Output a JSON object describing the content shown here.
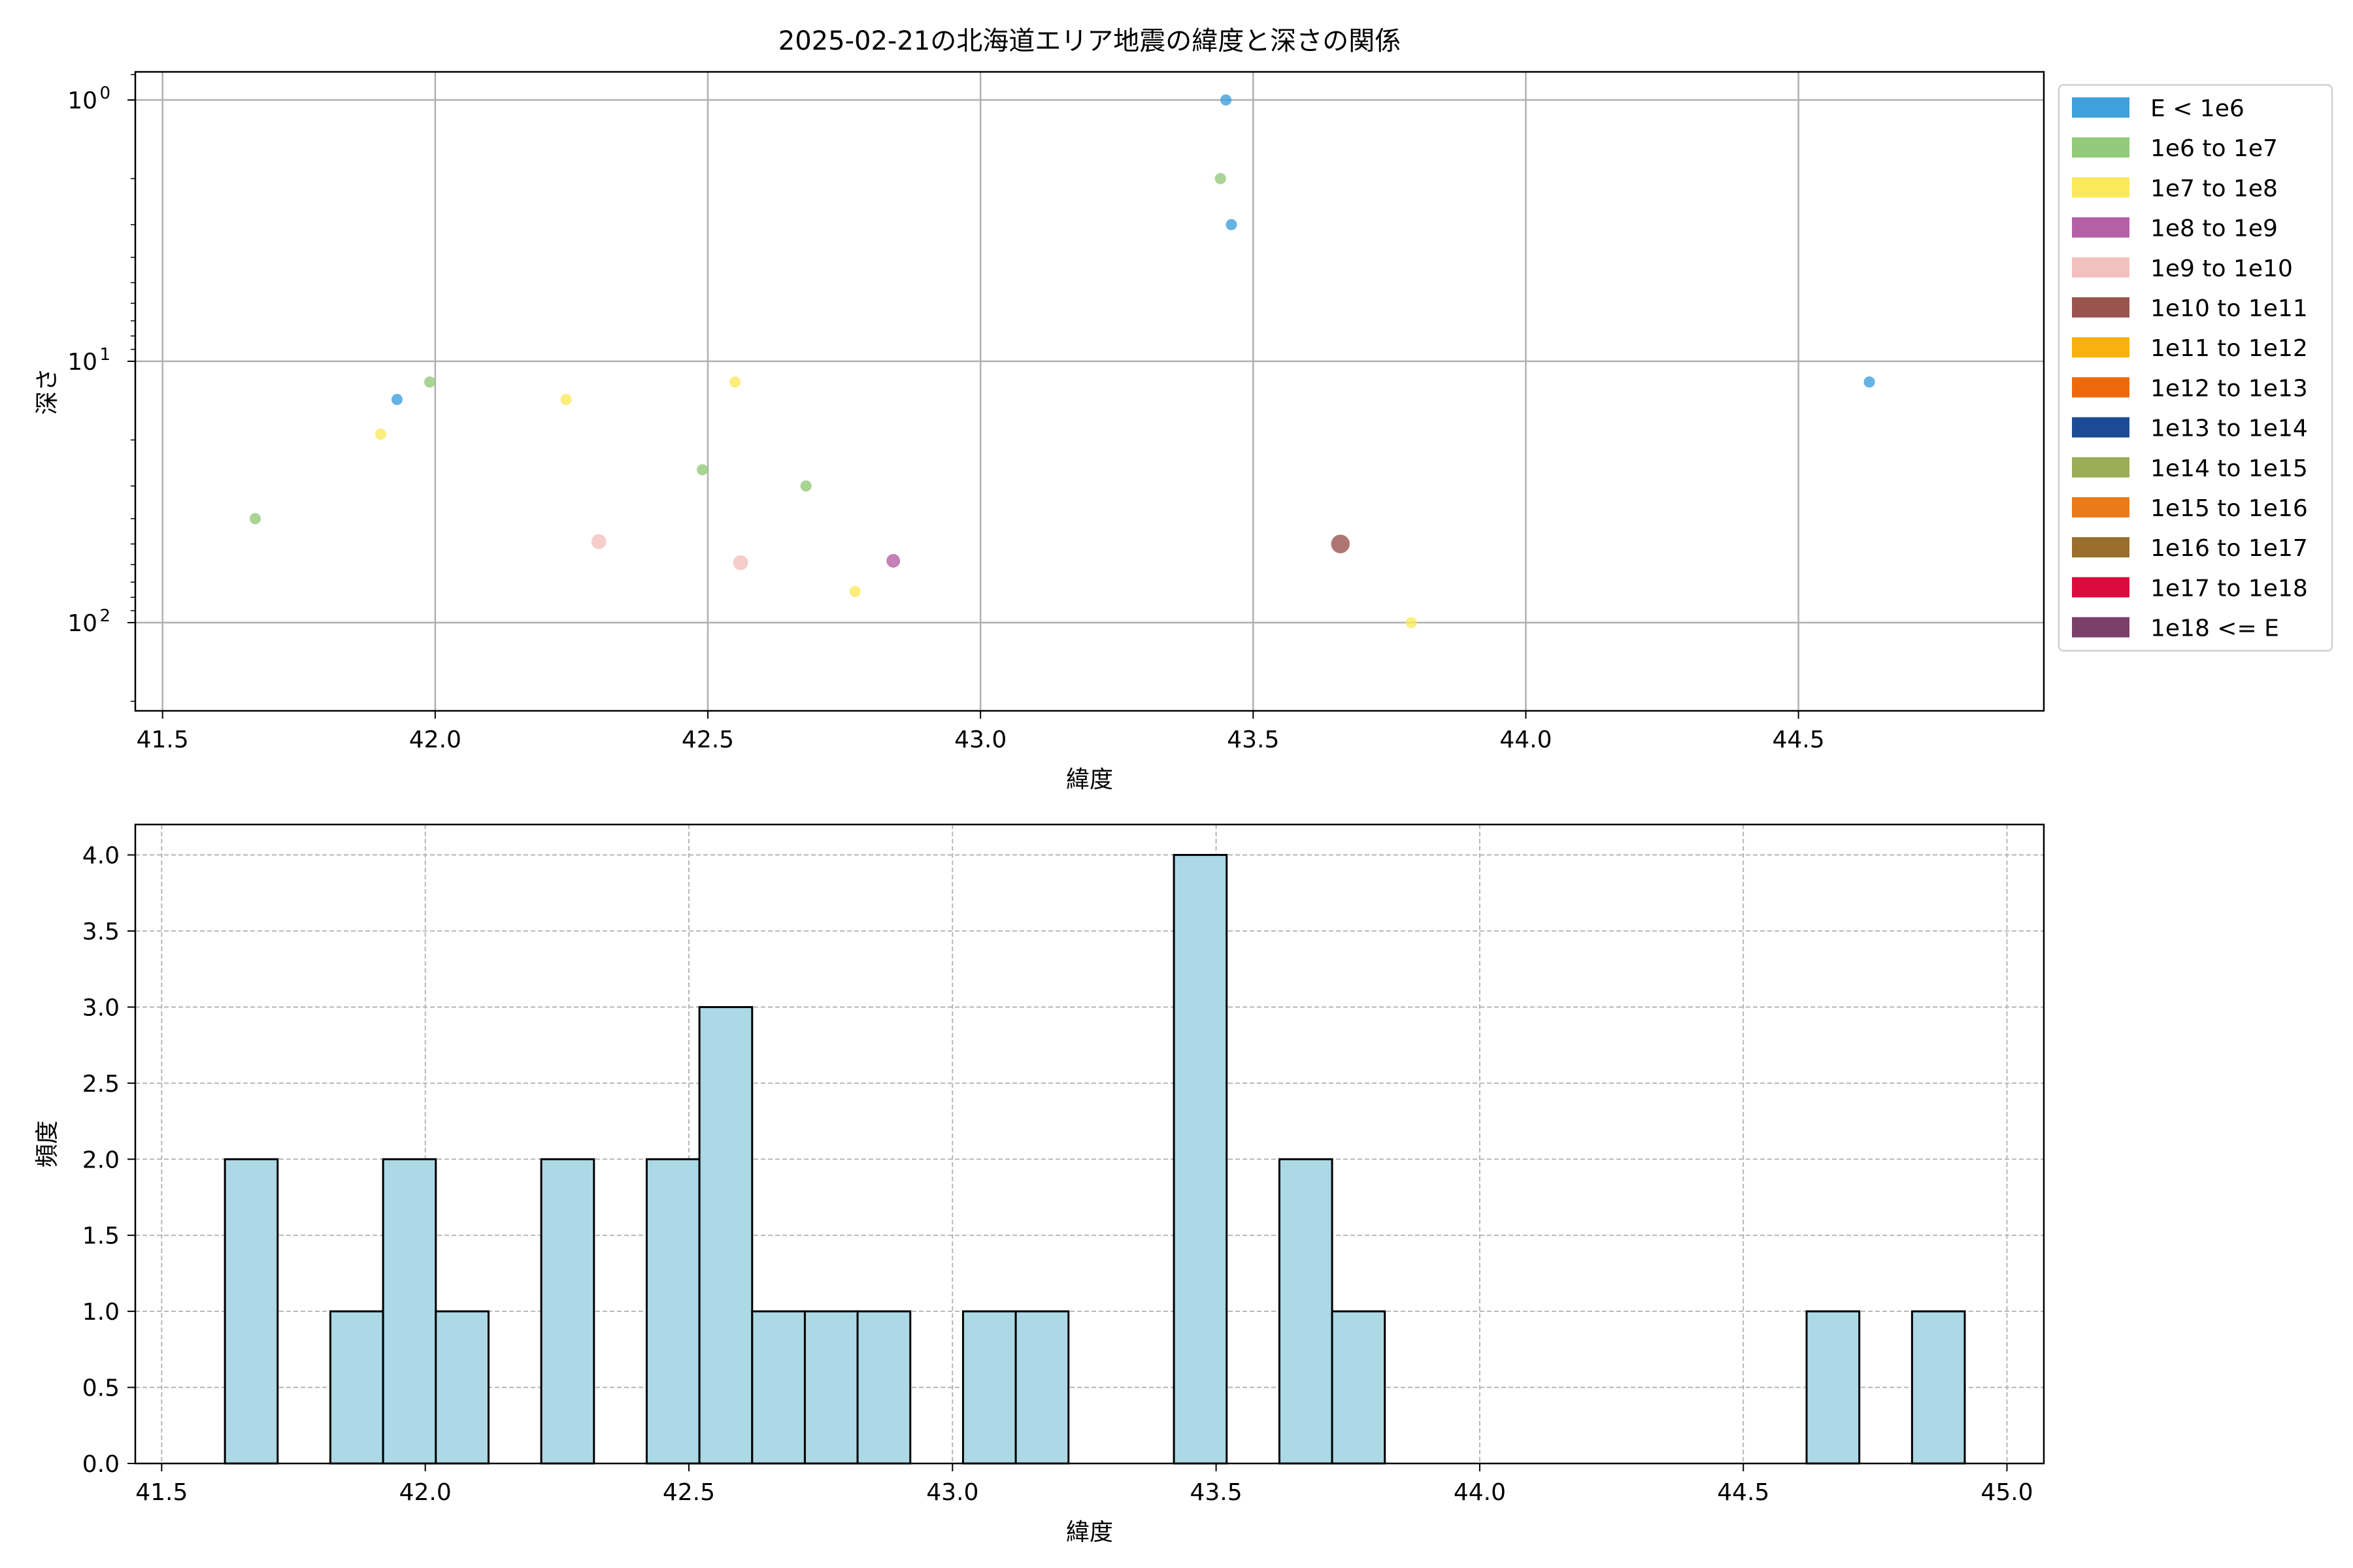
{
  "chart_data": [
    {
      "type": "scatter",
      "title": "2025-02-21の北海道エリア地震の緯度と深さの関係",
      "xlabel": "緯度",
      "ylabel": "深さ",
      "xlim": [
        41.45,
        44.95
      ],
      "y_scale": "log",
      "y_inverted": true,
      "grid": true,
      "x_ticks": [
        41.5,
        42.0,
        42.5,
        43.0,
        43.5,
        44.0,
        44.5
      ],
      "x_tick_labels": [
        "41.5",
        "42.0",
        "42.5",
        "43.0",
        "43.5",
        "44.0",
        "44.5"
      ],
      "y_ticks": [
        1,
        10,
        100
      ],
      "y_tick_labels": [
        {
          "base": "10",
          "exp": "0"
        },
        {
          "base": "10",
          "exp": "1"
        },
        {
          "base": "10",
          "exp": "2"
        }
      ],
      "legend_position": "outside upper right",
      "legend": [
        {
          "label": "E < 1e6",
          "color": "#3fa0dd"
        },
        {
          "label": "1e6 to 1e7",
          "color": "#93c97a"
        },
        {
          "label": "1e7 to 1e8",
          "color": "#fbe95c"
        },
        {
          "label": "1e8 to 1e9",
          "color": "#b560a6"
        },
        {
          "label": "1e9 to 1e10",
          "color": "#f3c1bd"
        },
        {
          "label": "1e10 to 1e11",
          "color": "#9a544e"
        },
        {
          "label": "1e11 to 1e12",
          "color": "#f8b10e"
        },
        {
          "label": "1e12 to 1e13",
          "color": "#ec6a0d"
        },
        {
          "label": "1e13 to 1e14",
          "color": "#1c4b96"
        },
        {
          "label": "1e14 to 1e15",
          "color": "#9bad55"
        },
        {
          "label": "1e15 to 1e16",
          "color": "#ea7b1c"
        },
        {
          "label": "1e16 to 1e17",
          "color": "#9a6e2d"
        },
        {
          "label": "1e17 to 1e18",
          "color": "#dc0a3f"
        },
        {
          "label": "1e18 <= E",
          "color": "#7b4069"
        }
      ],
      "points": [
        {
          "x": 43.45,
          "y": 1,
          "color": "#3fa0dd",
          "size": 4.5
        },
        {
          "x": 43.44,
          "y": 2,
          "color": "#93c97a",
          "size": 4.5
        },
        {
          "x": 43.46,
          "y": 3,
          "color": "#3fa0dd",
          "size": 4.5
        },
        {
          "x": 41.93,
          "y": 14,
          "color": "#3fa0dd",
          "size": 4.5
        },
        {
          "x": 41.99,
          "y": 12,
          "color": "#93c97a",
          "size": 4.5
        },
        {
          "x": 41.9,
          "y": 19,
          "color": "#fbe95c",
          "size": 4.5
        },
        {
          "x": 42.24,
          "y": 14,
          "color": "#fbe95c",
          "size": 4.5
        },
        {
          "x": 42.55,
          "y": 12,
          "color": "#fbe95c",
          "size": 4.5
        },
        {
          "x": 44.63,
          "y": 12,
          "color": "#3fa0dd",
          "size": 4.5
        },
        {
          "x": 41.67,
          "y": 40,
          "color": "#93c97a",
          "size": 4.5
        },
        {
          "x": 42.49,
          "y": 26,
          "color": "#93c97a",
          "size": 4.5
        },
        {
          "x": 42.68,
          "y": 30,
          "color": "#93c97a",
          "size": 4.5
        },
        {
          "x": 42.3,
          "y": 49,
          "color": "#f3c1bd",
          "size": 6
        },
        {
          "x": 42.56,
          "y": 59,
          "color": "#f3c1bd",
          "size": 6
        },
        {
          "x": 42.84,
          "y": 58,
          "color": "#b560a6",
          "size": 5.5
        },
        {
          "x": 42.77,
          "y": 76,
          "color": "#fbe95c",
          "size": 4.5
        },
        {
          "x": 43.66,
          "y": 50,
          "color": "#9a544e",
          "size": 7.5
        },
        {
          "x": 43.79,
          "y": 100,
          "color": "#fbe95c",
          "size": 4.5
        }
      ]
    },
    {
      "type": "bar",
      "subtype": "histogram",
      "xlabel": "緯度",
      "ylabel": "頻度",
      "xlim": [
        41.45,
        45.07
      ],
      "ylim": [
        0,
        4.2
      ],
      "grid": true,
      "bar_color": "#add8e6",
      "x_ticks": [
        41.5,
        42.0,
        42.5,
        43.0,
        43.5,
        44.0,
        44.5,
        45.0
      ],
      "x_tick_labels": [
        "41.5",
        "42.0",
        "42.5",
        "43.0",
        "43.5",
        "44.0",
        "44.5",
        "45.0"
      ],
      "y_ticks": [
        0,
        0.5,
        1.0,
        1.5,
        2.0,
        2.5,
        3.0,
        3.5,
        4.0
      ],
      "y_tick_labels": [
        "0.0",
        "0.5",
        "1.0",
        "1.5",
        "2.0",
        "2.5",
        "3.0",
        "3.5",
        "4.0"
      ],
      "bins": [
        {
          "x0": 41.62,
          "x1": 41.72,
          "count": 2
        },
        {
          "x0": 41.82,
          "x1": 41.92,
          "count": 1
        },
        {
          "x0": 41.92,
          "x1": 42.02,
          "count": 2
        },
        {
          "x0": 42.02,
          "x1": 42.12,
          "count": 1
        },
        {
          "x0": 42.22,
          "x1": 42.32,
          "count": 2
        },
        {
          "x0": 42.42,
          "x1": 42.52,
          "count": 2
        },
        {
          "x0": 42.52,
          "x1": 42.62,
          "count": 3
        },
        {
          "x0": 42.62,
          "x1": 42.72,
          "count": 1
        },
        {
          "x0": 42.72,
          "x1": 42.82,
          "count": 1
        },
        {
          "x0": 42.82,
          "x1": 42.92,
          "count": 1
        },
        {
          "x0": 43.02,
          "x1": 43.12,
          "count": 1
        },
        {
          "x0": 43.12,
          "x1": 43.22,
          "count": 1
        },
        {
          "x0": 43.42,
          "x1": 43.52,
          "count": 4
        },
        {
          "x0": 43.62,
          "x1": 43.72,
          "count": 2
        },
        {
          "x0": 43.72,
          "x1": 43.82,
          "count": 1
        },
        {
          "x0": 44.62,
          "x1": 44.72,
          "count": 1
        },
        {
          "x0": 44.82,
          "x1": 44.92,
          "count": 1
        }
      ]
    }
  ]
}
